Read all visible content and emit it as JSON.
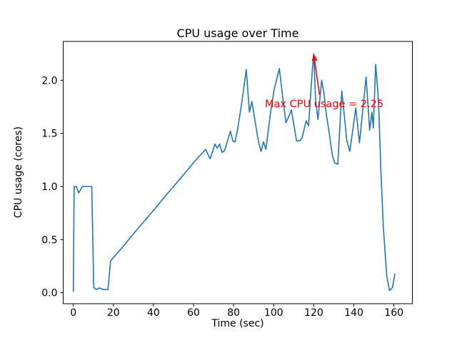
{
  "colors": {
    "line": "#1f77b4",
    "annotation": "#ff0000",
    "axis": "#000000",
    "background": "#ffffff"
  },
  "chart_data": {
    "type": "line",
    "title": "CPU usage over Time",
    "xlabel": "Time (sec)",
    "ylabel": "CPU usage (cores)",
    "xlim": [
      -5.2,
      169.1
    ],
    "ylim": [
      -0.1125,
      2.3625
    ],
    "grid": false,
    "legend": "none",
    "xticks": {
      "values": [
        0,
        20,
        40,
        60,
        80,
        100,
        120,
        140,
        160
      ],
      "labels": [
        "0",
        "20",
        "40",
        "60",
        "80",
        "100",
        "120",
        "140",
        "160"
      ]
    },
    "yticks": {
      "values": [
        0.0,
        0.5,
        1.0,
        1.5,
        2.0
      ],
      "labels": [
        "0.0",
        "0.5",
        "1.0",
        "1.5",
        "2.0"
      ]
    },
    "series": [
      {
        "name": "cpu-usage",
        "points": [
          [
            0,
            0.01
          ],
          [
            0.4,
            1.0
          ],
          [
            1.5,
            1.0
          ],
          [
            2.7,
            0.94
          ],
          [
            4.5,
            1.0
          ],
          [
            9.2,
            1.0
          ],
          [
            10.2,
            0.05
          ],
          [
            11.5,
            0.03
          ],
          [
            13,
            0.045
          ],
          [
            15,
            0.03
          ],
          [
            17.3,
            0.03
          ],
          [
            18.6,
            0.3
          ],
          [
            25,
            0.44
          ],
          [
            30,
            0.555
          ],
          [
            35,
            0.665
          ],
          [
            40,
            0.775
          ],
          [
            45,
            0.89
          ],
          [
            50,
            1.0
          ],
          [
            55,
            1.11
          ],
          [
            60,
            1.225
          ],
          [
            66,
            1.35
          ],
          [
            68.3,
            1.26
          ],
          [
            70.7,
            1.4
          ],
          [
            71.8,
            1.36
          ],
          [
            73,
            1.4
          ],
          [
            74.2,
            1.32
          ],
          [
            75.5,
            1.34
          ],
          [
            78.4,
            1.52
          ],
          [
            79.6,
            1.43
          ],
          [
            80.7,
            1.42
          ],
          [
            82,
            1.54
          ],
          [
            84,
            1.78
          ],
          [
            86.3,
            2.1
          ],
          [
            87.9,
            1.7
          ],
          [
            89.1,
            1.8
          ],
          [
            90.5,
            1.64
          ],
          [
            92.3,
            1.43
          ],
          [
            93.7,
            1.33
          ],
          [
            94.9,
            1.42
          ],
          [
            96.1,
            1.35
          ],
          [
            98.4,
            1.69
          ],
          [
            100.2,
            1.91
          ],
          [
            102.8,
            2.11
          ],
          [
            103.7,
            1.97
          ],
          [
            104.5,
            1.84
          ],
          [
            106.1,
            1.6
          ],
          [
            107.3,
            1.65
          ],
          [
            108.8,
            1.72
          ],
          [
            111.4,
            1.43
          ],
          [
            113,
            1.43
          ],
          [
            114.2,
            1.46
          ],
          [
            116.2,
            1.62
          ],
          [
            117.4,
            1.57
          ],
          [
            119.2,
            2.08
          ],
          [
            120,
            2.25
          ],
          [
            120.9,
            1.82
          ],
          [
            122.1,
            1.63
          ],
          [
            123.9,
            2.0
          ],
          [
            125.1,
            1.88
          ],
          [
            126.3,
            1.67
          ],
          [
            127.5,
            1.53
          ],
          [
            129.3,
            1.29
          ],
          [
            130.5,
            1.22
          ],
          [
            132,
            1.21
          ],
          [
            134,
            1.9
          ],
          [
            135.8,
            1.56
          ],
          [
            136.4,
            1.44
          ],
          [
            138,
            1.33
          ],
          [
            141,
            1.74
          ],
          [
            142.8,
            1.41
          ],
          [
            146.1,
            2.03
          ],
          [
            147.9,
            1.53
          ],
          [
            149,
            1.7
          ],
          [
            149.7,
            1.55
          ],
          [
            150.9,
            2.15
          ],
          [
            152.3,
            1.8
          ],
          [
            153.5,
            1.15
          ],
          [
            154.7,
            0.62
          ],
          [
            156.4,
            0.16
          ],
          [
            157.8,
            0.02
          ],
          [
            159.3,
            0.05
          ],
          [
            160.5,
            0.18
          ]
        ]
      }
    ],
    "annotation": {
      "text": "Max CPU usage = 2.25",
      "color": "#ff0000",
      "xy": [
        120,
        2.25
      ],
      "arrow": true
    }
  }
}
